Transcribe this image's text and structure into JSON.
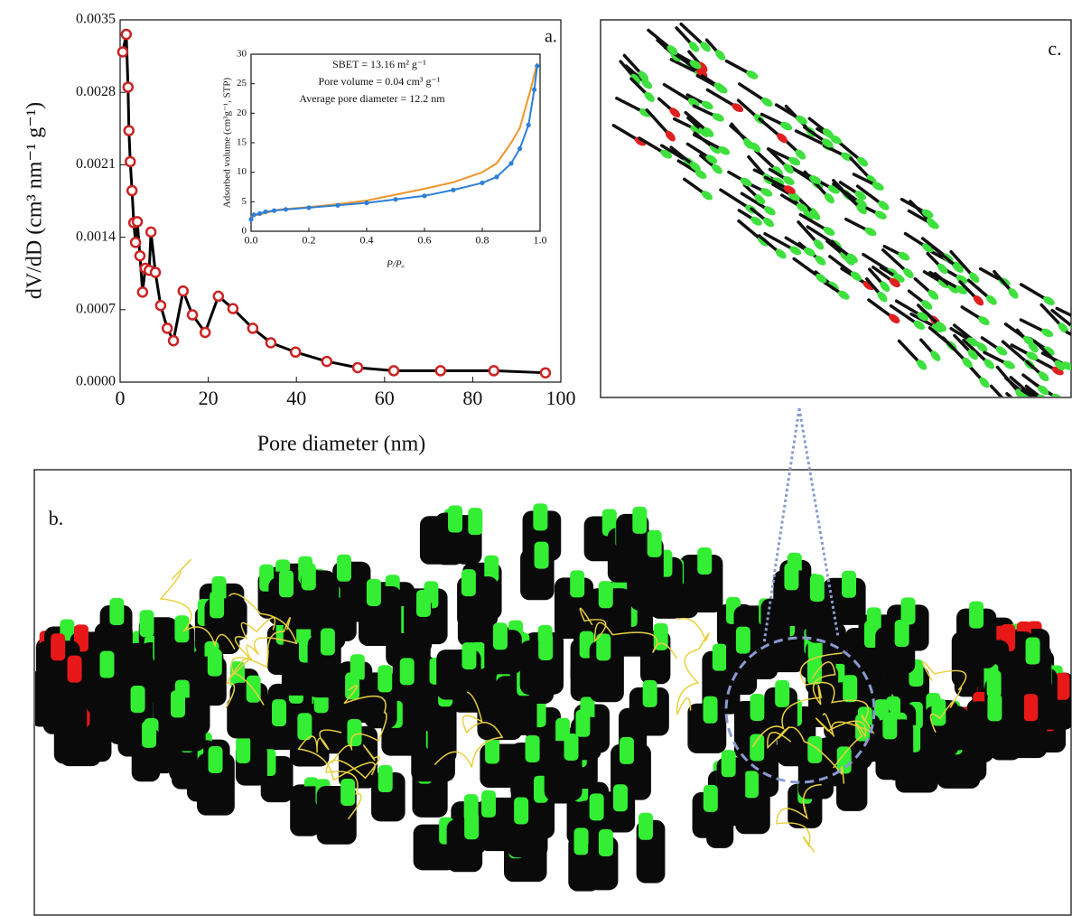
{
  "chart_data": [
    {
      "type": "line",
      "annotations": [
        "a."
      ],
      "xlabel": "Pore diameter (nm)",
      "ylabel": "dV/dD (cm³ nm⁻¹ g⁻¹)",
      "xlim": [
        0,
        100
      ],
      "xticks": [
        0,
        20,
        40,
        60,
        80,
        100
      ],
      "ylim": [
        0,
        0.0035
      ],
      "yticks": [
        {
          "value": 0,
          "label": "0.0000"
        },
        0.0007,
        0.0014,
        0.0021,
        0.0028,
        0.0035
      ],
      "series": [
        {
          "color": "#000000",
          "marker_color": "#cc2222",
          "x": [
            0.6,
            1.4,
            1.8,
            2.0,
            2.3,
            2.7,
            3.1,
            3.5,
            3.9,
            4.5,
            5.1,
            5.7,
            6.6,
            7.0,
            8.0,
            9.2,
            10.7,
            12.1,
            14.3,
            16.4,
            19.3,
            22.3,
            25.6,
            30.1,
            34.2,
            39.8,
            46.9,
            53.9,
            62.1,
            72.7,
            84.8,
            96.5
          ],
          "values": [
            0.00319,
            0.00336,
            0.00285,
            0.00243,
            0.00213,
            0.00185,
            0.00154,
            0.00135,
            0.00155,
            0.00122,
            0.00087,
            0.0011,
            0.00108,
            0.00145,
            0.00106,
            0.00074,
            0.00052,
            0.0004,
            0.00088,
            0.00065,
            0.00048,
            0.00083,
            0.00071,
            0.00052,
            0.00038,
            0.00029,
            0.0002,
            0.00014,
            0.00011,
            0.00011,
            0.00011,
            9e-05
          ]
        }
      ]
    },
    {
      "type": "line",
      "annotations": [
        "SBET = 13.16 m² g⁻¹",
        "Pore volume = 0.04 cm³ g⁻¹",
        "Average pore diameter = 12.2 nm"
      ],
      "xlabel": "P/Pₒ",
      "ylabel": "Adsorbed volume (cm³g⁻¹, STP)",
      "xlim": [
        0,
        1
      ],
      "xticks": [
        {
          "value": 0,
          "label": "0.0"
        },
        0.2,
        0.4,
        0.6,
        0.8,
        {
          "value": 1,
          "label": "1.0"
        }
      ],
      "ylim": [
        0,
        30
      ],
      "yticks": [
        0,
        5,
        10,
        15,
        20,
        25,
        30
      ],
      "series": [
        {
          "color": "#f0952a",
          "x": [
            0.0,
            0.1,
            0.2,
            0.3,
            0.4,
            0.5,
            0.6,
            0.7,
            0.8,
            0.85,
            0.9,
            0.93,
            0.97,
            0.99
          ],
          "values": [
            2.5,
            3.7,
            4.1,
            4.6,
            5.2,
            6.2,
            7.2,
            8.3,
            10.0,
            11.5,
            15.0,
            17.5,
            24.5,
            28.5
          ]
        },
        {
          "color": "#2f7fd6",
          "marker_color": "#2f7fd6",
          "x": [
            0.0,
            0.01,
            0.03,
            0.05,
            0.08,
            0.12,
            0.2,
            0.3,
            0.4,
            0.5,
            0.6,
            0.7,
            0.8,
            0.85,
            0.9,
            0.93,
            0.96,
            0.98,
            0.99
          ],
          "values": [
            2.0,
            2.8,
            3.0,
            3.3,
            3.5,
            3.7,
            4.0,
            4.4,
            4.8,
            5.4,
            6.0,
            7.0,
            8.2,
            9.2,
            11.5,
            14.0,
            18.0,
            24.0,
            28.0
          ]
        }
      ]
    }
  ],
  "illustrations": [
    {
      "label": "c."
    },
    {
      "label": "b."
    }
  ]
}
